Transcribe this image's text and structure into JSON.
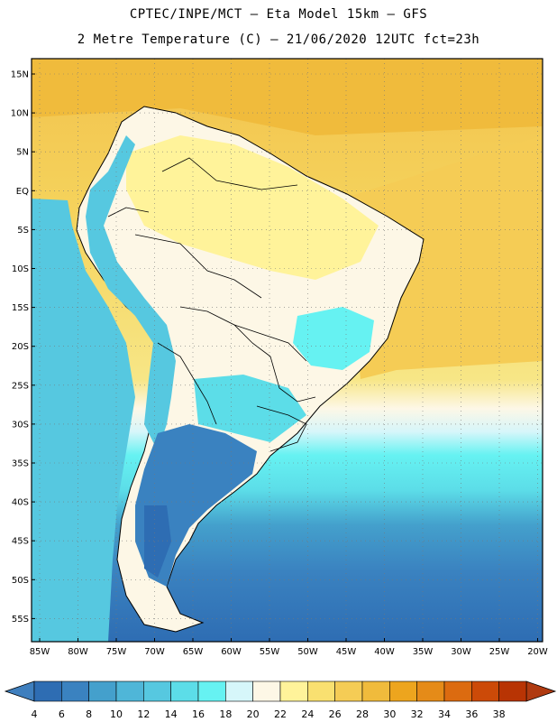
{
  "header": {
    "line1": "CPTEC/INPE/MCT –  Eta Model 15km – GFS",
    "line2": "2 Metre Temperature (C) – 21/06/2020 12UTC fct=23h"
  },
  "map": {
    "lat_labels": [
      "15N",
      "10N",
      "5N",
      "EQ",
      "5S",
      "10S",
      "15S",
      "20S",
      "25S",
      "30S",
      "35S",
      "40S",
      "45S",
      "50S",
      "55S"
    ],
    "lon_labels": [
      "85W",
      "80W",
      "75W",
      "70W",
      "65W",
      "60W",
      "55W",
      "50W",
      "45W",
      "40W",
      "35W",
      "30W",
      "25W",
      "20W"
    ],
    "grid": "dotted"
  },
  "colorbar": {
    "ticks": [
      "4",
      "6",
      "8",
      "10",
      "12",
      "14",
      "16",
      "18",
      "20",
      "22",
      "24",
      "26",
      "28",
      "30",
      "32",
      "34",
      "36",
      "38"
    ],
    "colors": [
      "#2e6db3",
      "#3a82c0",
      "#44a0cc",
      "#4fb6d8",
      "#56c8e0",
      "#5cdde8",
      "#66f2f2",
      "#d6f6fa",
      "#fdf7e6",
      "#fff39a",
      "#f9e070",
      "#f5cc55",
      "#f0bb3c",
      "#eda51e",
      "#e58b18",
      "#dc6b10",
      "#cc4a08",
      "#b83404"
    ],
    "low_color": "#3f7fbe",
    "high_color": "#b03a10"
  }
}
